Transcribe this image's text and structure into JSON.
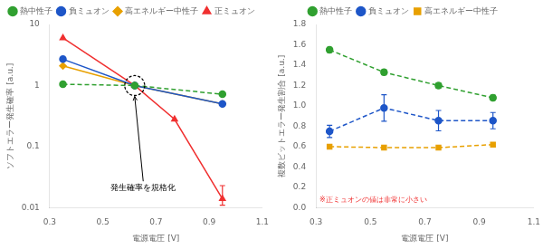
{
  "chart_data": [
    {
      "type": "line",
      "log": "y",
      "xlabel": "電源電圧 [V]",
      "ylabel": "ソフトエラー発生確率 [a.u.]",
      "xlim": [
        0.3,
        1.1
      ],
      "xticks": [
        0.3,
        0.5,
        0.7,
        0.9,
        1.1
      ],
      "ylim": [
        0.01,
        10
      ],
      "yticks": [
        0.01,
        0.1,
        1,
        10
      ],
      "grid": false,
      "legend": "top",
      "series": [
        {
          "name": "熱中性子",
          "color": "#30a030",
          "marker": "circle",
          "line_style": "dashed",
          "x": [
            0.35,
            0.62,
            0.95
          ],
          "values": [
            1.05,
            1.0,
            0.72
          ]
        },
        {
          "name": "負ミュオン",
          "color": "#1e56c8",
          "marker": "circle",
          "line_style": "solid",
          "x": [
            0.35,
            0.62,
            0.95
          ],
          "values": [
            2.7,
            1.0,
            0.5
          ]
        },
        {
          "name": "高エネルギー中性子",
          "color": "#e8a000",
          "marker": "diamond",
          "line_style": "solid",
          "x": [
            0.35,
            0.62,
            0.95
          ],
          "values": [
            2.1,
            1.0,
            0.5
          ]
        },
        {
          "name": "正ミュオン",
          "color": "#f03030",
          "marker": "triangle",
          "line_style": "solid",
          "x": [
            0.35,
            0.62,
            0.77,
            0.95
          ],
          "values": [
            6.0,
            1.0,
            0.28,
            0.014
          ],
          "yerr_low": [
            null,
            null,
            null,
            0.003
          ],
          "yerr_high": [
            null,
            null,
            null,
            0.009
          ]
        }
      ],
      "annotations": [
        {
          "text": "発生確率を規格化",
          "x": 0.62,
          "y": 1.0
        }
      ]
    },
    {
      "type": "line",
      "xlabel": "電源電圧 [V]",
      "ylabel": "複数ビットエラー発生割合 [a.u.]",
      "xlim": [
        0.3,
        1.1
      ],
      "xticks": [
        0.3,
        0.5,
        0.7,
        0.9,
        1.1
      ],
      "ylim": [
        0.0,
        1.8
      ],
      "yticks": [
        {
          "value": 0,
          "label": "0.0"
        },
        0.2,
        0.4,
        0.6,
        0.8,
        {
          "value": 1,
          "label": "1.0"
        },
        1.2,
        1.4,
        1.6,
        1.8
      ],
      "grid": false,
      "legend": "top",
      "series": [
        {
          "name": "熱中性子",
          "color": "#30a030",
          "marker": "circle",
          "line_style": "dashed",
          "x": [
            0.35,
            0.55,
            0.75,
            0.95
          ],
          "values": [
            1.55,
            1.33,
            1.2,
            1.08
          ],
          "yerr": [
            0.025,
            0.025,
            0.025,
            0.025
          ]
        },
        {
          "name": "負ミュオン",
          "color": "#1e56c8",
          "marker": "circle",
          "line_style": "dashed",
          "x": [
            0.35,
            0.55,
            0.75,
            0.95
          ],
          "values": [
            0.75,
            0.98,
            0.855,
            0.855
          ],
          "yerr": [
            0.06,
            0.13,
            0.1,
            0.08
          ]
        },
        {
          "name": "高エネルギー中性子",
          "color": "#e8a000",
          "marker": "square",
          "line_style": "dashed",
          "x": [
            0.35,
            0.55,
            0.75,
            0.95
          ],
          "values": [
            0.6,
            0.59,
            0.59,
            0.62
          ]
        }
      ],
      "annotations": [
        {
          "text": "※正ミュオンの値は非常に小さい",
          "color": "#f03030"
        }
      ]
    }
  ]
}
